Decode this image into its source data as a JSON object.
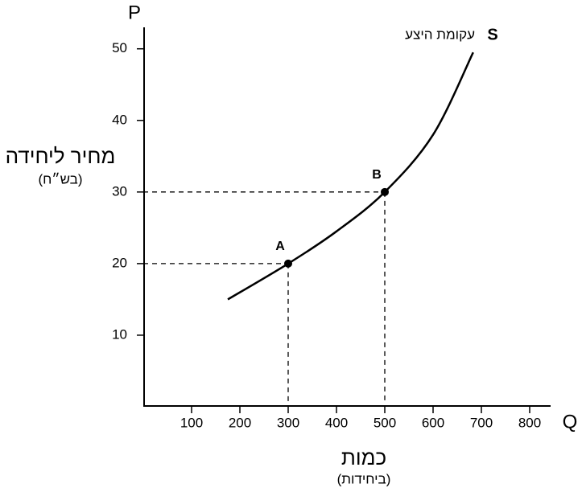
{
  "chart_data": {
    "type": "line",
    "x": [
      175,
      300,
      400,
      500,
      600,
      683
    ],
    "series": [
      {
        "name": "עקומת היצע",
        "color": "#000000",
        "values": [
          15,
          20,
          24.5,
          30,
          38,
          49.5
        ]
      }
    ],
    "curve_label": "S",
    "points": [
      {
        "label": "A",
        "x": 300,
        "y": 20
      },
      {
        "label": "B",
        "x": 500,
        "y": 30
      }
    ],
    "xlim": [
      0,
      850
    ],
    "ylim": [
      0,
      53
    ],
    "xticks": [
      100,
      200,
      300,
      400,
      500,
      600,
      700,
      800
    ],
    "yticks": [
      10,
      20,
      30,
      40,
      50
    ],
    "x_axis_symbol": "Q",
    "y_axis_symbol": "P",
    "xlabel": "כמות",
    "xlabel_unit": "(ביחידות)",
    "ylabel": "מחיר ליחידה",
    "ylabel_unit": "(בש״ח)"
  }
}
